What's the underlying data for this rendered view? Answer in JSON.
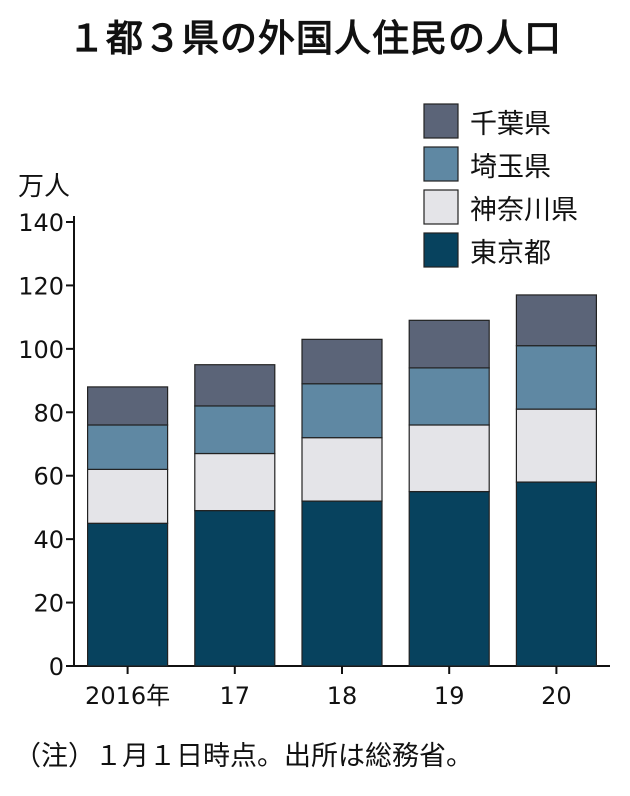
{
  "title": "１都３県の外国人住民の人口",
  "note": "（注）１月１日時点。出所は総務省。",
  "chart_data": {
    "type": "bar",
    "stacked": true,
    "categories": [
      "2016年",
      "17",
      "18",
      "19",
      "20"
    ],
    "series": [
      {
        "name": "東京都",
        "color": "#07425e",
        "values": [
          45,
          49,
          52,
          55,
          58
        ]
      },
      {
        "name": "神奈川県",
        "color": "#e4e4e8",
        "values": [
          17,
          18,
          20,
          21,
          23
        ]
      },
      {
        "name": "埼玉県",
        "color": "#5f88a3",
        "values": [
          14,
          15,
          17,
          18,
          20
        ]
      },
      {
        "name": "千葉県",
        "color": "#5b6478",
        "values": [
          12,
          13,
          14,
          15,
          16
        ]
      }
    ],
    "ylabel": "万人",
    "ylim": [
      0,
      140
    ],
    "yticks": [
      0,
      20,
      40,
      60,
      80,
      100,
      120,
      140
    ],
    "legend_position": "top-right",
    "grid": false
  }
}
